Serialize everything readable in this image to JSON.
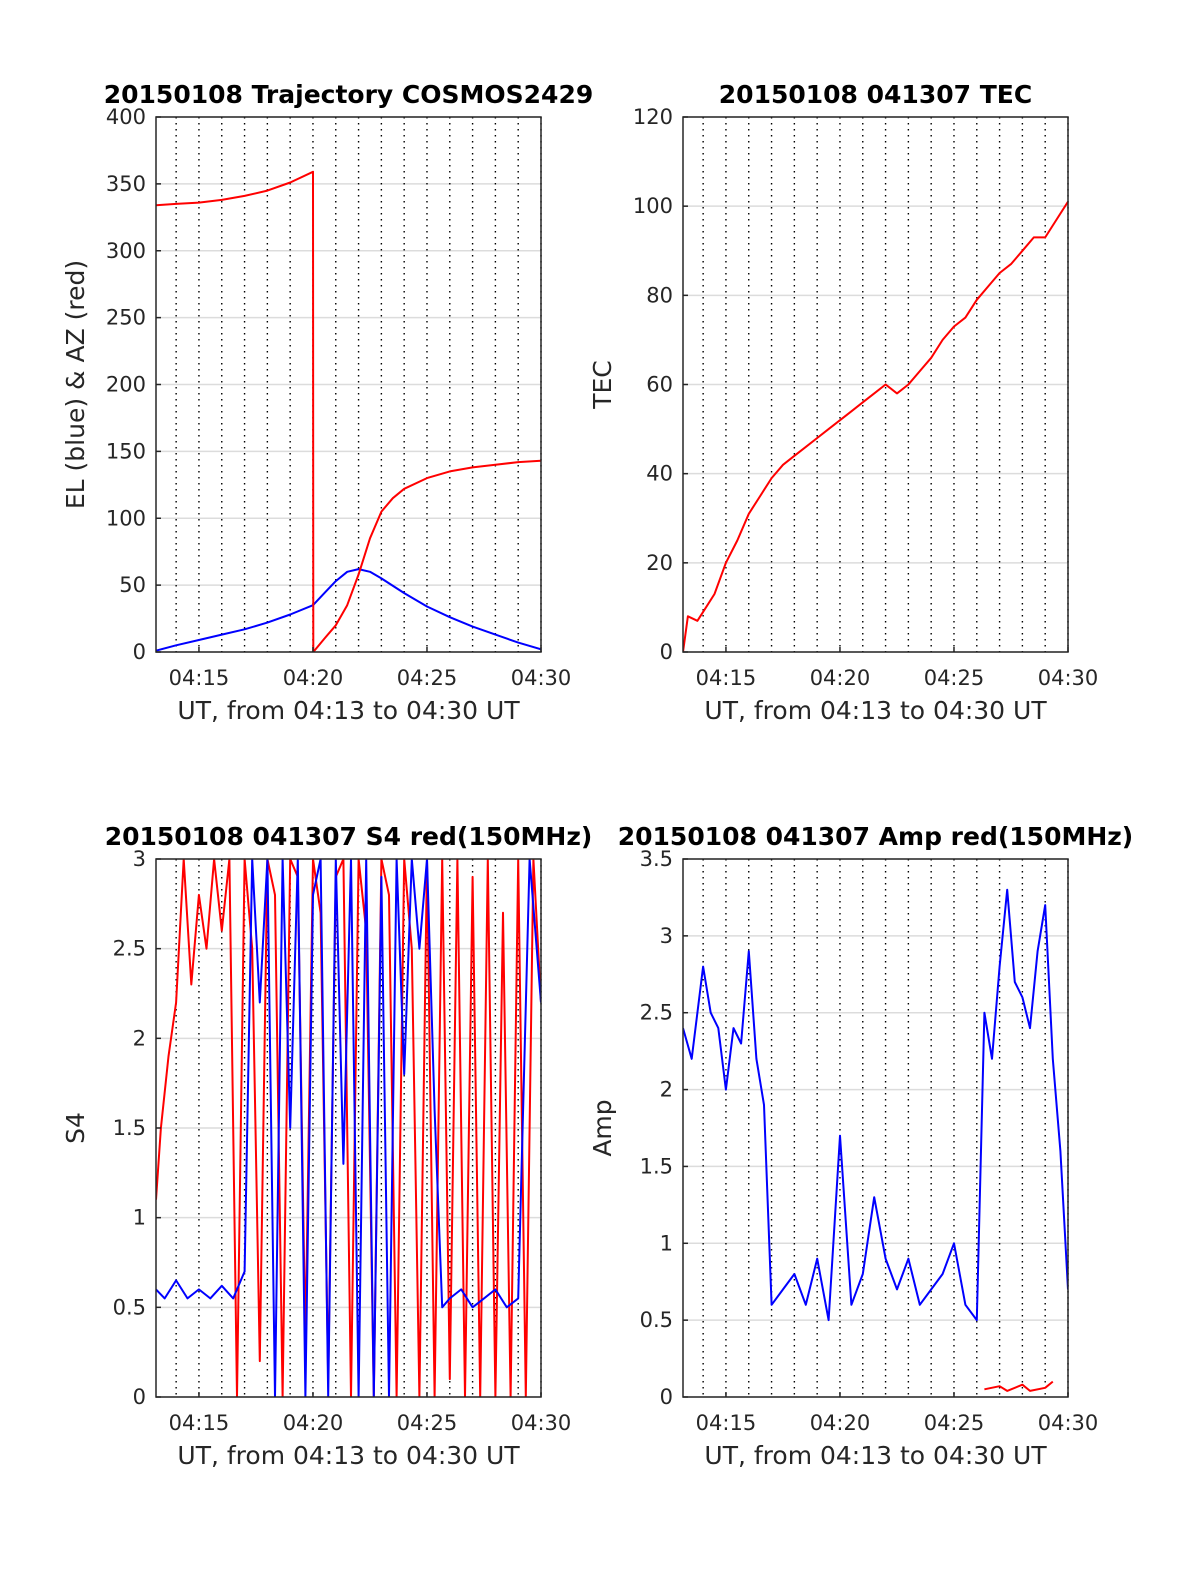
{
  "chart_data": [
    {
      "type": "line",
      "title": "20150108 Trajectory COSMOS2429",
      "xlabel": "UT, from 04:13 to 04:30 UT",
      "ylabel": "EL (blue) & AZ (red)",
      "x_ticks": [
        "04:15",
        "04:20",
        "04:25",
        "04:30"
      ],
      "xlim": [
        "04:13:07",
        "04:30:00"
      ],
      "ylim": [
        0,
        400
      ],
      "y_ticks": [
        "0",
        "50",
        "100",
        "150",
        "200",
        "250",
        "300",
        "350",
        "400"
      ],
      "grid": "x dotted every minute, y light gray",
      "series": [
        {
          "color": "#0000ff",
          "x": [
            "04:13:07",
            "04:14:00",
            "04:15:00",
            "04:16:00",
            "04:17:00",
            "04:18:00",
            "04:19:00",
            "04:20:00",
            "04:20:30",
            "04:21:00",
            "04:21:30",
            "04:22:00",
            "04:22:30",
            "04:23:00",
            "04:24:00",
            "04:25:00",
            "04:26:00",
            "04:27:00",
            "04:28:00",
            "04:29:00",
            "04:30:00"
          ],
          "values": [
            1,
            5,
            9,
            13,
            17,
            22,
            28,
            35,
            44,
            53,
            60,
            62,
            60,
            55,
            44,
            34,
            26,
            19,
            13,
            7,
            2
          ]
        },
        {
          "color": "#ff0000",
          "x": [
            "04:13:07",
            "04:14:00",
            "04:15:00",
            "04:16:00",
            "04:17:00",
            "04:18:00",
            "04:19:00",
            "04:20:00",
            "04:20:01",
            "04:20:30",
            "04:21:00",
            "04:21:30",
            "04:22:00",
            "04:22:30",
            "04:23:00",
            "04:23:30",
            "04:24:00",
            "04:25:00",
            "04:26:00",
            "04:27:00",
            "04:28:00",
            "04:29:00",
            "04:30:00"
          ],
          "values": [
            334,
            335,
            336,
            338,
            341,
            345,
            351,
            359,
            0,
            10,
            20,
            35,
            58,
            85,
            105,
            115,
            122,
            130,
            135,
            138,
            140,
            142,
            143
          ]
        }
      ]
    },
    {
      "type": "line",
      "title": "20150108 041307 TEC",
      "xlabel": "UT, from 04:13 to 04:30 UT",
      "ylabel": "TEC",
      "x_ticks": [
        "04:15",
        "04:20",
        "04:25",
        "04:30"
      ],
      "xlim": [
        "04:13:07",
        "04:30:00"
      ],
      "ylim": [
        0,
        120
      ],
      "y_ticks": [
        "0",
        "20",
        "40",
        "60",
        "80",
        "100",
        "120"
      ],
      "grid": "x dotted every minute, y light gray",
      "series": [
        {
          "color": "#ff0000",
          "x": [
            "04:13:07",
            "04:13:20",
            "04:13:45",
            "04:14:00",
            "04:14:30",
            "04:15:00",
            "04:15:30",
            "04:16:00",
            "04:16:30",
            "04:17:00",
            "04:17:30",
            "04:18:00",
            "04:18:30",
            "04:19:00",
            "04:19:30",
            "04:20:00",
            "04:20:30",
            "04:21:00",
            "04:21:30",
            "04:22:00",
            "04:22:30",
            "04:23:00",
            "04:23:30",
            "04:24:00",
            "04:24:30",
            "04:25:00",
            "04:25:30",
            "04:26:00",
            "04:26:30",
            "04:27:00",
            "04:27:30",
            "04:28:00",
            "04:28:30",
            "04:29:00",
            "04:29:30",
            "04:30:00"
          ],
          "values": [
            0,
            8,
            7,
            9,
            13,
            20,
            25,
            31,
            35,
            39,
            42,
            44,
            46,
            48,
            50,
            52,
            54,
            56,
            58,
            60,
            58,
            60,
            63,
            66,
            70,
            73,
            75,
            79,
            82,
            85,
            87,
            90,
            93,
            93,
            97,
            101
          ]
        }
      ]
    },
    {
      "type": "line",
      "title": "20150108 041307 S4 red(150MHz)",
      "xlabel": "UT, from 04:13 to 04:30 UT",
      "ylabel": "S4",
      "x_ticks": [
        "04:15",
        "04:20",
        "04:25",
        "04:30"
      ],
      "xlim": [
        "04:13:07",
        "04:30:00"
      ],
      "ylim": [
        0,
        3
      ],
      "y_ticks": [
        "0",
        "0.5",
        "1",
        "1.5",
        "2",
        "2.5",
        "3"
      ],
      "grid": "x dotted every minute, y light gray",
      "series": [
        {
          "color": "#ff0000",
          "x": [
            "04:13:07",
            "04:13:20",
            "04:13:40",
            "04:14:00",
            "04:14:20",
            "04:14:40",
            "04:15:00",
            "04:15:20",
            "04:15:40",
            "04:16:00",
            "04:16:20",
            "04:16:40",
            "04:17:00",
            "04:17:20",
            "04:17:40",
            "04:18:00",
            "04:18:20",
            "04:18:40",
            "04:19:00",
            "04:19:20",
            "04:19:40",
            "04:20:00",
            "04:20:20",
            "04:20:40",
            "04:21:00",
            "04:21:20",
            "04:21:40",
            "04:22:00",
            "04:22:20",
            "04:22:40",
            "04:23:00",
            "04:23:20",
            "04:23:40",
            "04:24:00",
            "04:24:20",
            "04:24:40",
            "04:25:00",
            "04:25:20",
            "04:25:40",
            "04:26:00",
            "04:26:20",
            "04:26:40",
            "04:27:00",
            "04:27:20",
            "04:27:40",
            "04:28:00",
            "04:28:20",
            "04:28:40",
            "04:29:00",
            "04:29:20",
            "04:29:40",
            "04:30:00"
          ],
          "values": [
            1.1,
            1.5,
            1.9,
            2.2,
            3.0,
            2.3,
            2.8,
            2.5,
            3.0,
            2.6,
            3.0,
            0.0,
            3.0,
            2.5,
            0.2,
            3.0,
            2.8,
            0.0,
            3.0,
            2.9,
            0.3,
            3.0,
            2.7,
            0.1,
            2.9,
            3.0,
            0.0,
            3.0,
            2.6,
            0.0,
            3.0,
            2.8,
            0.0,
            3.0,
            2.5,
            0.0,
            3.0,
            0.0,
            3.0,
            0.1,
            3.0,
            0.0,
            2.9,
            0.0,
            3.0,
            0.0,
            2.7,
            0.0,
            3.0,
            0.0,
            3.0,
            2.2
          ]
        },
        {
          "color": "#0000ff",
          "x": [
            "04:13:07",
            "04:13:30",
            "04:14:00",
            "04:14:30",
            "04:15:00",
            "04:15:30",
            "04:16:00",
            "04:16:30",
            "04:17:00",
            "04:17:20",
            "04:17:40",
            "04:18:00",
            "04:18:20",
            "04:18:40",
            "04:19:00",
            "04:19:20",
            "04:19:40",
            "04:20:00",
            "04:20:20",
            "04:20:40",
            "04:21:00",
            "04:21:20",
            "04:21:40",
            "04:22:00",
            "04:22:20",
            "04:22:40",
            "04:23:00",
            "04:23:20",
            "04:23:40",
            "04:24:00",
            "04:24:20",
            "04:24:40",
            "04:25:00",
            "04:25:20",
            "04:25:40",
            "04:26:00",
            "04:26:30",
            "04:27:00",
            "04:27:30",
            "04:28:00",
            "04:28:30",
            "04:29:00",
            "04:29:30",
            "04:30:00"
          ],
          "values": [
            0.6,
            0.55,
            0.65,
            0.55,
            0.6,
            0.55,
            0.62,
            0.55,
            0.7,
            3.0,
            2.2,
            3.0,
            0.0,
            3.0,
            1.5,
            3.0,
            0.0,
            2.8,
            3.0,
            0.0,
            3.0,
            1.3,
            3.0,
            0.0,
            3.0,
            0.0,
            2.9,
            0.0,
            3.0,
            1.8,
            3.0,
            2.5,
            3.0,
            1.6,
            0.5,
            0.55,
            0.6,
            0.5,
            0.55,
            0.6,
            0.5,
            0.55,
            3.0,
            2.2
          ]
        }
      ]
    },
    {
      "type": "line",
      "title": "20150108 041307 Amp red(150MHz)",
      "xlabel": "UT, from 04:13 to 04:30 UT",
      "ylabel": "Amp",
      "x_ticks": [
        "04:15",
        "04:20",
        "04:25",
        "04:30"
      ],
      "xlim": [
        "04:13:07",
        "04:30:00"
      ],
      "ylim": [
        0,
        3.5
      ],
      "y_ticks": [
        "0",
        "0.5",
        "1",
        "1.5",
        "2",
        "2.5",
        "3",
        "3.5"
      ],
      "grid": "x dotted every minute, y light gray",
      "series": [
        {
          "color": "#0000ff",
          "x": [
            "04:13:07",
            "04:13:30",
            "04:14:00",
            "04:14:20",
            "04:14:40",
            "04:15:00",
            "04:15:20",
            "04:15:40",
            "04:16:00",
            "04:16:20",
            "04:16:40",
            "04:17:00",
            "04:17:30",
            "04:18:00",
            "04:18:30",
            "04:19:00",
            "04:19:30",
            "04:20:00",
            "04:20:30",
            "04:21:00",
            "04:21:30",
            "04:22:00",
            "04:22:30",
            "04:23:00",
            "04:23:30",
            "04:24:00",
            "04:24:30",
            "04:25:00",
            "04:25:30",
            "04:26:00",
            "04:26:20",
            "04:26:40",
            "04:27:00",
            "04:27:20",
            "04:27:40",
            "04:28:00",
            "04:28:20",
            "04:28:40",
            "04:29:00",
            "04:29:20",
            "04:29:40",
            "04:30:00"
          ],
          "values": [
            2.4,
            2.2,
            2.8,
            2.5,
            2.4,
            2.0,
            2.4,
            2.3,
            2.9,
            2.2,
            1.9,
            0.6,
            0.7,
            0.8,
            0.6,
            0.9,
            0.5,
            1.7,
            0.6,
            0.8,
            1.3,
            0.9,
            0.7,
            0.9,
            0.6,
            0.7,
            0.8,
            1.0,
            0.6,
            0.5,
            2.5,
            2.2,
            2.8,
            3.3,
            2.7,
            2.6,
            2.4,
            2.9,
            3.2,
            2.2,
            1.6,
            0.7
          ]
        },
        {
          "color": "#ff0000",
          "x": [
            "04:26:20",
            "04:27:00",
            "04:27:20",
            "04:28:00",
            "04:28:20",
            "04:29:00",
            "04:29:20"
          ],
          "values": [
            0.05,
            0.07,
            0.04,
            0.08,
            0.04,
            0.06,
            0.1
          ]
        }
      ]
    }
  ]
}
